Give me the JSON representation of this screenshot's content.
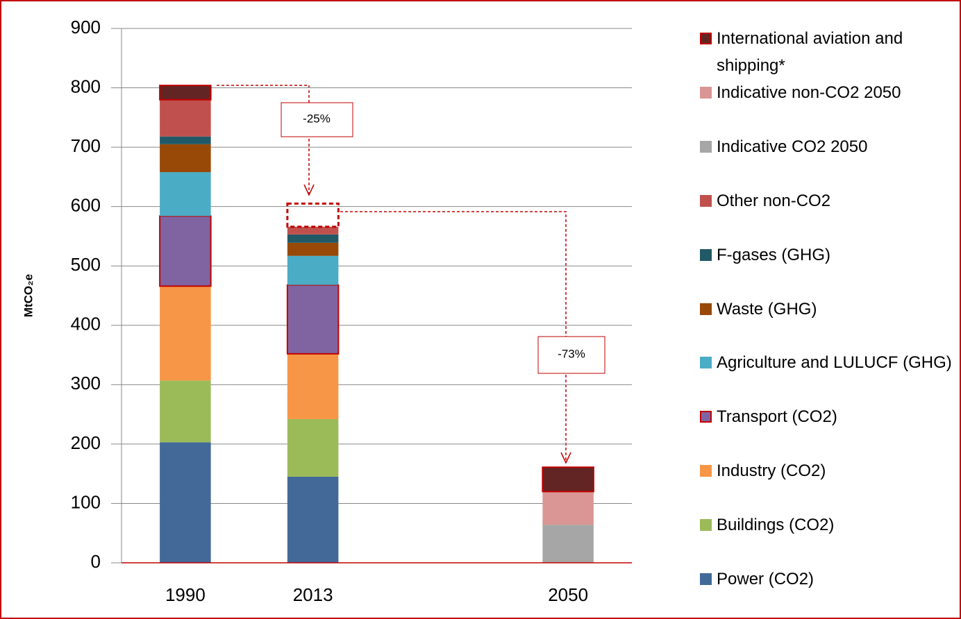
{
  "chart_data": {
    "type": "stacked_bar",
    "y_label": "MtCO₂e",
    "categories": [
      "1990",
      "2013",
      null,
      "2050"
    ],
    "ylim": [
      0,
      900
    ],
    "yticks": [
      0,
      100,
      200,
      300,
      400,
      500,
      600,
      700,
      800,
      900
    ],
    "grid": true,
    "series": [
      {
        "name": "Power (CO2)",
        "color": "#426998",
        "values": [
          203,
          145,
          null,
          null
        ]
      },
      {
        "name": "Buildings (CO2)",
        "color": "#9bbb59",
        "values": [
          104,
          97,
          null,
          null
        ]
      },
      {
        "name": "Industry (CO2)",
        "color": "#f79646",
        "values": [
          159,
          110,
          null,
          null
        ]
      },
      {
        "name": "Transport (CO2)",
        "color": "#8064a2",
        "outline": "#c00000",
        "values": [
          118,
          116,
          null,
          null
        ]
      },
      {
        "name": "Agriculture and LULUCF (GHG)",
        "color": "#4bacc6",
        "values": [
          74,
          49,
          null,
          null
        ]
      },
      {
        "name": "Waste (GHG)",
        "color": "#984807",
        "values": [
          47,
          22,
          null,
          null
        ]
      },
      {
        "name": "F-gases (GHG)",
        "color": "#215967",
        "values": [
          13,
          14,
          null,
          null
        ]
      },
      {
        "name": "Other non-CO2",
        "color": "#c0504d",
        "values": [
          62,
          13,
          null,
          null
        ]
      },
      {
        "name": "Indicative CO2 2050",
        "color": "#a6a6a6",
        "values": [
          null,
          null,
          null,
          64
        ]
      },
      {
        "name": "Indicative non-CO2 2050",
        "color": "#d99694",
        "values": [
          null,
          null,
          null,
          56
        ]
      },
      {
        "name": "International aviation and shipping*",
        "color": "#632523",
        "outline": "#c00000",
        "dashed": [
          false,
          true,
          false,
          false
        ],
        "values": [
          24,
          39,
          null,
          41
        ]
      }
    ],
    "annotations": [
      "-25%",
      "-73%"
    ]
  }
}
